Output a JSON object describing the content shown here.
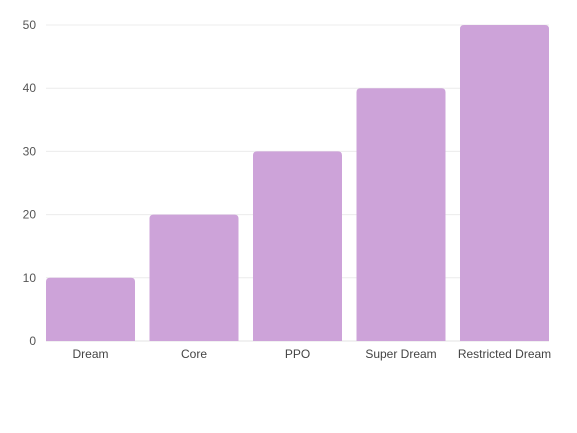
{
  "chart_data": {
    "type": "bar",
    "categories": [
      "Dream",
      "Core",
      "PPO",
      "Super Dream",
      "Restricted Dream"
    ],
    "values": [
      10,
      20,
      30,
      40,
      50
    ],
    "title": "",
    "xlabel": "",
    "ylabel": "",
    "ylim": [
      0,
      50
    ],
    "yticks": [
      0,
      10,
      20,
      30,
      40,
      50
    ],
    "grid": true,
    "legend": "none",
    "bar_color": "#cda3d9",
    "grid_color": "#ececec",
    "text_color": "#555555"
  }
}
